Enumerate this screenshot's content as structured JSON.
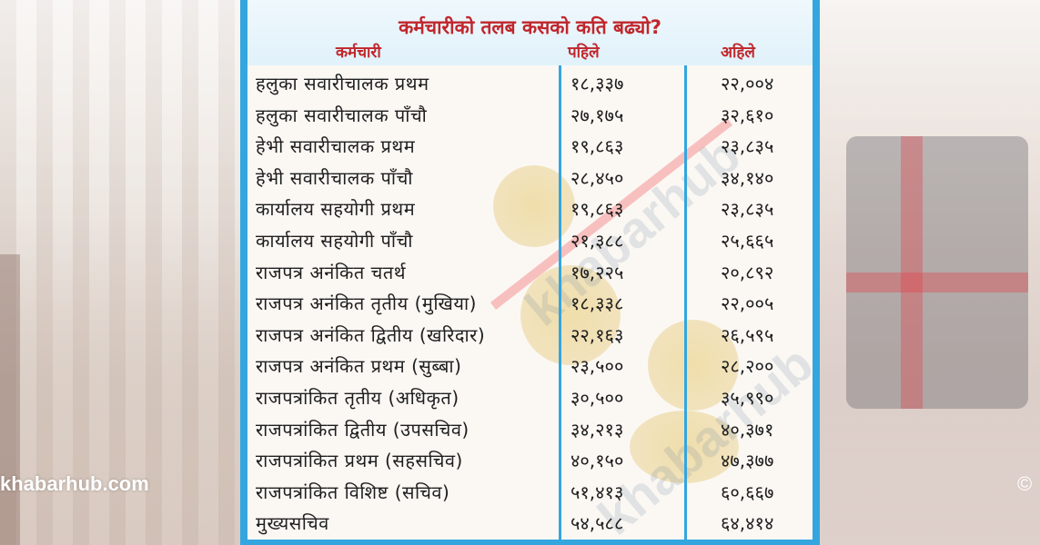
{
  "title": "कर्मचारीको तलब कसको कति बढ्यो?",
  "columns": {
    "employee": "कर्मचारी",
    "before": "पहिले",
    "now": "अहिले"
  },
  "rows": [
    {
      "name": "हलुका सवारीचालक प्रथम",
      "before": "१८,३३७",
      "now": "२२,००४"
    },
    {
      "name": "हलुका सवारीचालक पाँचौ",
      "before": "२७,१७५",
      "now": "३२,६१०"
    },
    {
      "name": "हेभी सवारीचालक प्रथम",
      "before": "१९,८६३",
      "now": "२३,८३५"
    },
    {
      "name": "हेभी सवारीचालक पाँचौ",
      "before": "२८,४५०",
      "now": "३४,१४०"
    },
    {
      "name": "कार्यालय सहयोगी प्रथम",
      "before": "१९,८६३",
      "now": "२३,८३५"
    },
    {
      "name": "कार्यालय सहयोगी पाँचौ",
      "before": "२१,३८८",
      "now": "२५,६६५"
    },
    {
      "name": "राजपत्र अनंकित चतर्थ",
      "before": "१७,२२५",
      "now": "२०,८९२"
    },
    {
      "name": "राजपत्र अनंकित तृतीय (मुखिया)",
      "before": "१८,३३८",
      "now": "२२,००५"
    },
    {
      "name": "राजपत्र अनंकित द्वितीय (खरिदार)",
      "before": "२२,१६३",
      "now": "२६,५९५"
    },
    {
      "name": "राजपत्र अनंकित प्रथम (सुब्बा)",
      "before": "२३,५००",
      "now": "२८,२००"
    },
    {
      "name": "राजपत्रांकित तृतीय (अधिकृत)",
      "before": "३०,५००",
      "now": "३५,९९०"
    },
    {
      "name": "राजपत्रांकित द्वितीय (उपसचिव)",
      "before": "३४,२१३",
      "now": "४०,३७१"
    },
    {
      "name": "राजपत्रांकित प्रथम (सहसचिव)",
      "before": "४०,१५०",
      "now": "४७,३७७"
    },
    {
      "name": "राजपत्रांकित विशिष्ट (सचिव)",
      "before": "५१,४१३",
      "now": "६०,६६७"
    },
    {
      "name": "मुख्यसचिव",
      "before": "५४,५८८",
      "now": "६४,४१४"
    }
  ],
  "watermark": "khabarhub",
  "brand": "khabarhub.com",
  "copyright": "©",
  "colors": {
    "panel_blue": "#34a6df",
    "title_red": "#c0262b"
  }
}
